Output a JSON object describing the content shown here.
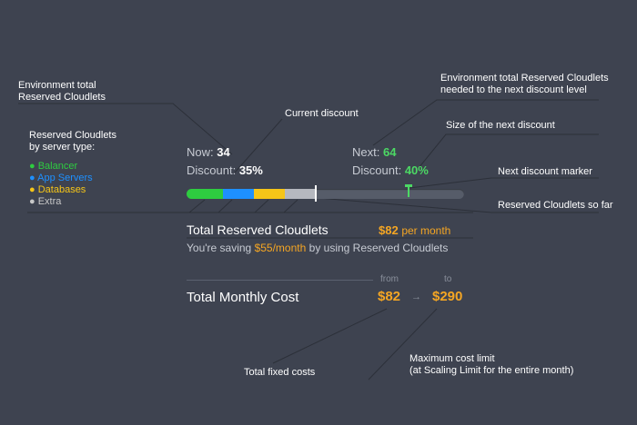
{
  "annotations": {
    "env_total": "Environment total\nReserved Cloudlets",
    "current_discount": "Current discount",
    "env_total_next": "Environment total Reserved Cloudlets\nneeded to the next discount level",
    "size_next_discount": "Size of the next discount",
    "by_server_type": "Reserved Cloudlets\nby server type:",
    "next_discount_marker": "Next discount marker",
    "reserved_so_far": "Reserved Cloudlets so far",
    "total_fixed_costs": "Total fixed costs",
    "max_cost_limit": "Maximum cost limit\n(at Scaling Limit for the entire month)"
  },
  "legend": [
    {
      "label": "Balancer",
      "color": "#2ecc40"
    },
    {
      "label": "App Servers",
      "color": "#1e90ff"
    },
    {
      "label": "Databases",
      "color": "#f5c518"
    },
    {
      "label": "Extra",
      "color": "#c8c8c8"
    }
  ],
  "now": {
    "label": "Now:",
    "value": "34"
  },
  "now_discount": {
    "label": "Discount:",
    "value": "35%"
  },
  "next": {
    "label": "Next:",
    "value": "64"
  },
  "next_discount": {
    "label": "Discount:",
    "value": "40%"
  },
  "progress": {
    "current_fraction": 0.46,
    "next_fraction": 0.8,
    "segments": [
      {
        "name": "balancer",
        "fraction": 0.13,
        "color": "#2ecc40"
      },
      {
        "name": "app-servers",
        "fraction": 0.11,
        "color": "#1e90ff"
      },
      {
        "name": "databases",
        "fraction": 0.11,
        "color": "#f5c518"
      },
      {
        "name": "extra",
        "fraction": 0.11,
        "color": "#b5b8bf"
      }
    ]
  },
  "reserved": {
    "title": "Total Reserved Cloudlets",
    "price": "$82",
    "per": "per month",
    "saving_prefix": "You're saving",
    "saving_amount": "$55/month",
    "saving_suffix": "by using Reserved Cloudlets"
  },
  "monthly": {
    "title": "Total Monthly Cost",
    "from_label": "from",
    "to_label": "to",
    "from_value": "$82",
    "to_value": "$290",
    "arrow": "→"
  },
  "colors": {
    "background": "#3e4350",
    "accent": "#f5a623",
    "green": "#4cd964"
  }
}
